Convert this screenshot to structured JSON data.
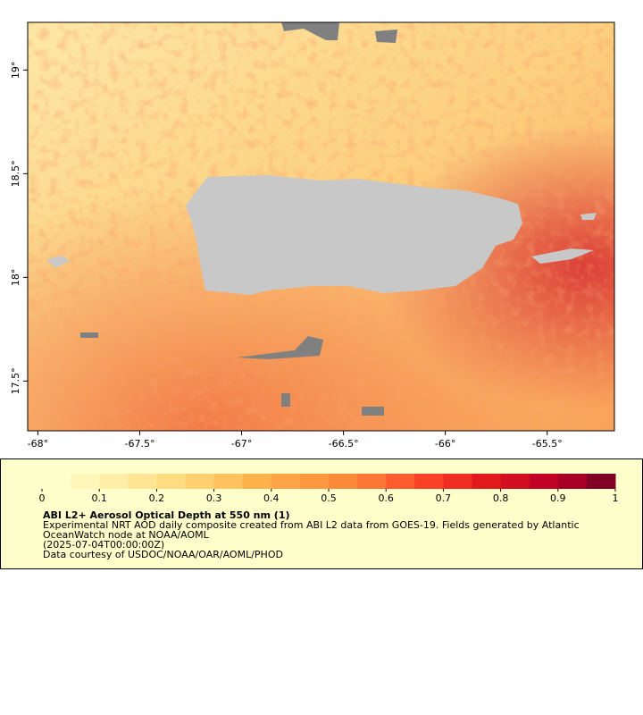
{
  "map": {
    "xlim": [
      -68.05,
      -65.17
    ],
    "ylim": [
      17.26,
      19.23
    ],
    "lon_ticks": [
      {
        "value": -68,
        "label": "-68°"
      },
      {
        "value": -67.5,
        "label": "-67.5°"
      },
      {
        "value": -67,
        "label": "-67°"
      },
      {
        "value": -66.5,
        "label": "-66.5°"
      },
      {
        "value": -66,
        "label": "-66°"
      },
      {
        "value": -65.5,
        "label": "-65.5°"
      }
    ],
    "lat_ticks": [
      {
        "value": 17.5,
        "label": "17.5°"
      },
      {
        "value": 18,
        "label": "18°"
      },
      {
        "value": 18.5,
        "label": "18.5°"
      },
      {
        "value": 19,
        "label": "19°"
      }
    ]
  },
  "colorbar": {
    "lim": [
      0,
      1
    ],
    "ticks": [
      0,
      0.1,
      0.2,
      0.3,
      0.4,
      0.5,
      0.6,
      0.7,
      0.8,
      0.9,
      1
    ],
    "colors": [
      "#ffffcc",
      "#fff6b9",
      "#ffeea6",
      "#fee593",
      "#fedc81",
      "#fed06f",
      "#fec35e",
      "#feb24c",
      "#fea446",
      "#fd9740",
      "#fd8a3b",
      "#fc7735",
      "#fc5b2e",
      "#f84127",
      "#ef2d22",
      "#e31a1c",
      "#d20f20",
      "#c00225",
      "#a60026",
      "#800026"
    ],
    "title": "ABI L2+ Aerosol Optical Depth at 550 nm (1)",
    "lines": [
      "Experimental NRT AOD daily composite created from ABI L2 data from GOES-19. Fields generated by Atlantic",
      "OceanWatch node at NOAA/AOML",
      "(2025-07-04T00:00:00Z)",
      "Data courtesy of USDOC/NOAA/OAR/AOML/PHOD"
    ]
  }
}
